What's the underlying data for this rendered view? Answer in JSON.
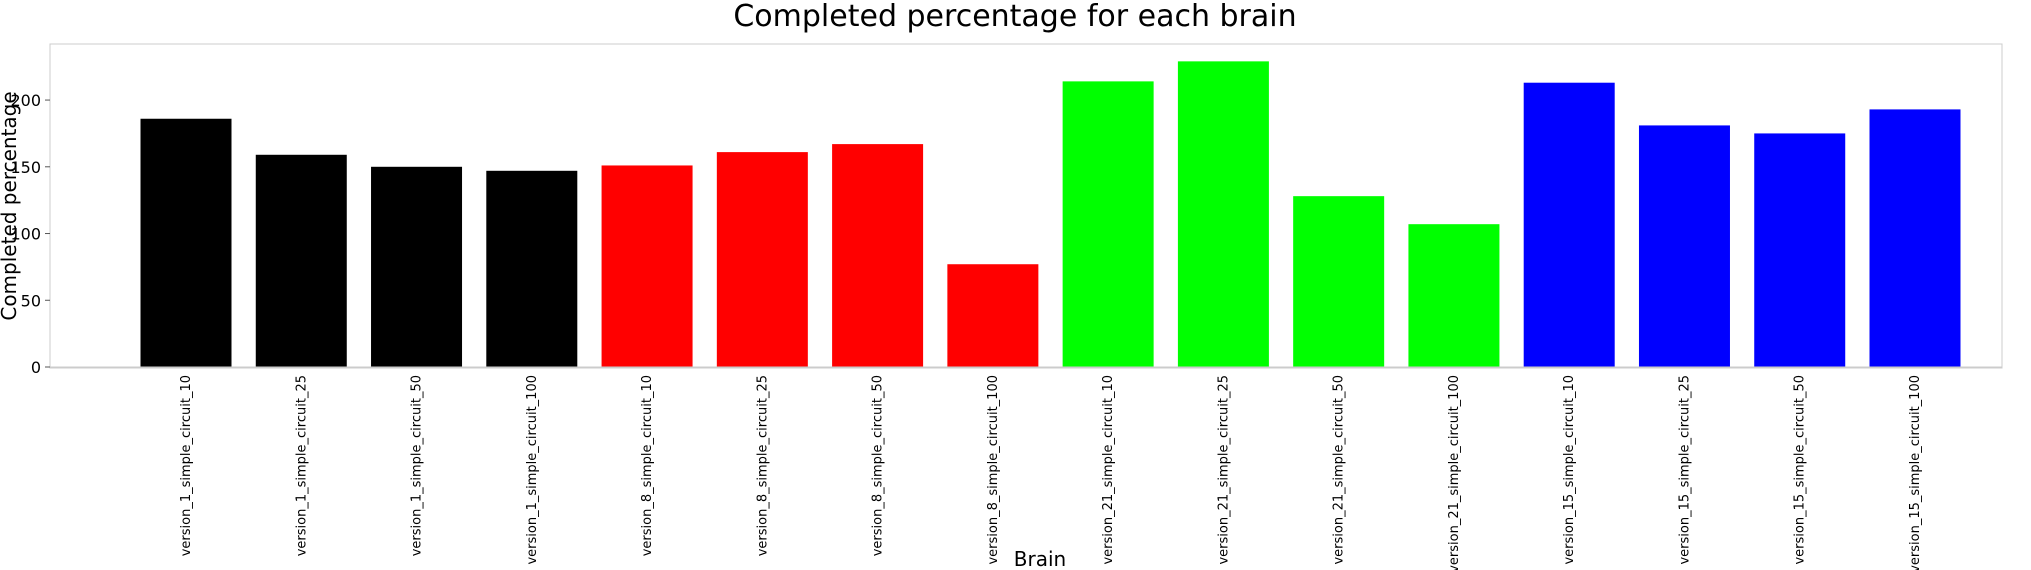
{
  "chart_data": {
    "type": "bar",
    "title": "Completed percentage for each brain",
    "xlabel": "Brain",
    "ylabel": "Completed percentage",
    "ylim": [
      0,
      242
    ],
    "yticks": [
      0,
      50,
      100,
      150,
      200
    ],
    "grid": false,
    "categories": [
      "version_1_simple_circuit_10",
      "version_1_simple_circuit_25",
      "version_1_simple_circuit_50",
      "version_1_simple_circuit_100",
      "version_8_simple_circuit_10",
      "version_8_simple_circuit_25",
      "version_8_simple_circuit_50",
      "version_8_simple_circuit_100",
      "version_21_simple_circuit_10",
      "version_21_simple_circuit_25",
      "version_21_simple_circuit_50",
      "version_21_simple_circuit_100",
      "version_15_simple_circuit_10",
      "version_15_simple_circuit_25",
      "version_15_simple_circuit_50",
      "version_15_simple_circuit_100"
    ],
    "values": [
      186,
      159,
      150,
      147,
      151,
      161,
      167,
      77,
      214,
      229,
      128,
      107,
      213,
      181,
      175,
      193
    ],
    "colors": [
      "#000000",
      "#000000",
      "#000000",
      "#000000",
      "#ff0000",
      "#ff0000",
      "#ff0000",
      "#ff0000",
      "#00ff00",
      "#00ff00",
      "#00ff00",
      "#00ff00",
      "#0000ff",
      "#0000ff",
      "#0000ff",
      "#0000ff"
    ]
  }
}
